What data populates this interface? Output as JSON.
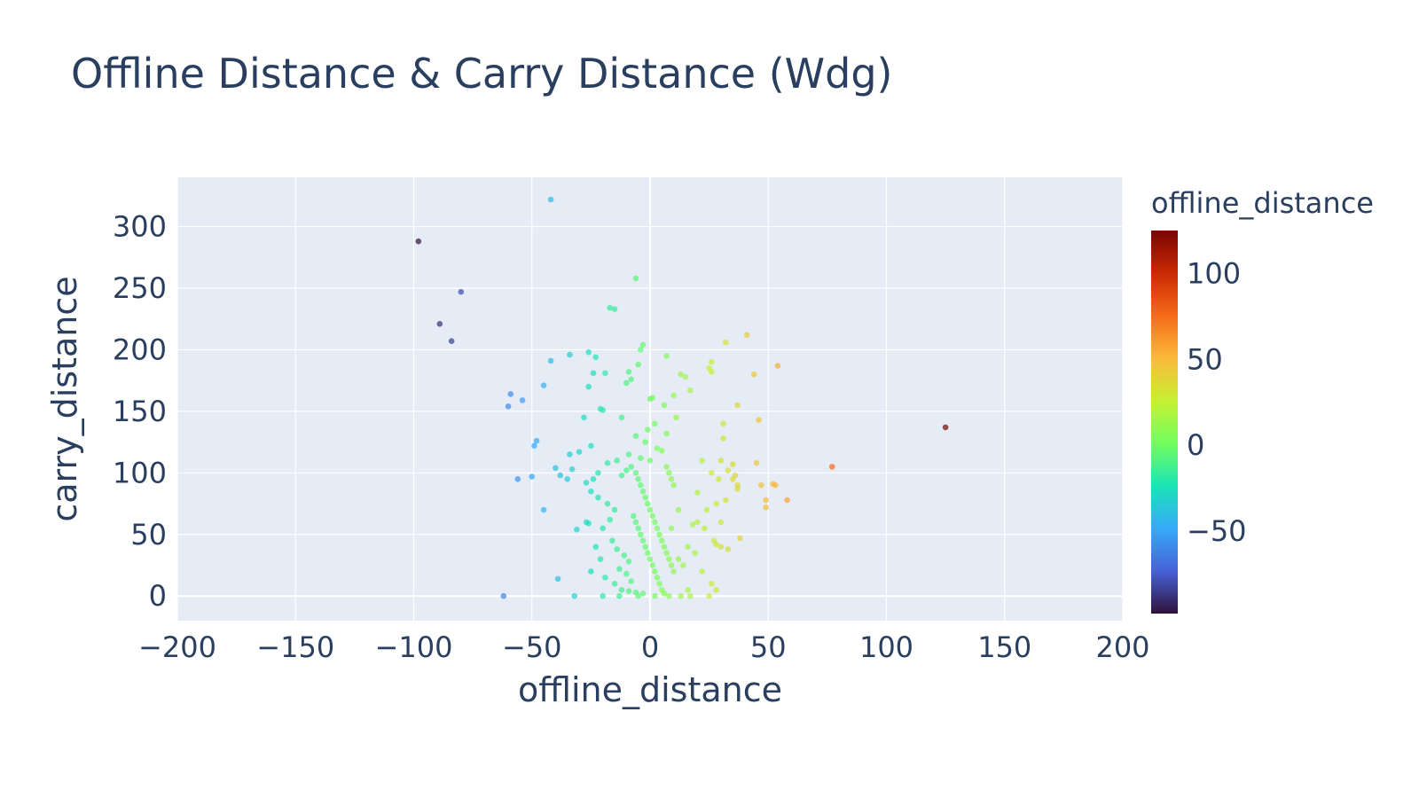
{
  "chart_data": {
    "type": "scatter",
    "title": "Offline Distance & Carry Distance (Wdg)",
    "xlabel": "offline_distance",
    "ylabel": "carry_distance",
    "xlim": [
      -200,
      200
    ],
    "ylim": [
      -20,
      340
    ],
    "xticks": [
      -200,
      -150,
      -100,
      -50,
      0,
      50,
      100,
      150,
      200
    ],
    "xtick_labels": [
      "−200",
      "−150",
      "−100",
      "−50",
      "0",
      "50",
      "100",
      "150",
      "200"
    ],
    "yticks": [
      0,
      50,
      100,
      150,
      200,
      250,
      300
    ],
    "ytick_labels": [
      "0",
      "50",
      "100",
      "150",
      "200",
      "250",
      "300"
    ],
    "grid": true,
    "colorbar": {
      "title": "offline_distance",
      "range": [
        -98,
        125
      ],
      "ticks": [
        -50,
        0,
        50,
        100
      ],
      "tick_labels": [
        "−50",
        "0",
        "50",
        "100"
      ],
      "colorscale": "turbo",
      "stops": [
        "#30123b",
        "#4662d7",
        "#36aaf9",
        "#1ae4b6",
        "#72fe5e",
        "#c8ef34",
        "#faba39",
        "#f66b19",
        "#ca2a04",
        "#7a0403"
      ]
    },
    "plot_bgcolor": "#e5ecf6",
    "points": [
      [
        -42,
        322
      ],
      [
        -98,
        288
      ],
      [
        -80,
        247
      ],
      [
        -89,
        221
      ],
      [
        -84,
        207
      ],
      [
        -6,
        258
      ],
      [
        -17,
        234
      ],
      [
        -15,
        233
      ],
      [
        -3,
        204
      ],
      [
        -4,
        200
      ],
      [
        -26,
        198
      ],
      [
        -34,
        196
      ],
      [
        -23,
        194
      ],
      [
        -42,
        191
      ],
      [
        -45,
        171
      ],
      [
        -24,
        181
      ],
      [
        -19,
        181
      ],
      [
        -9,
        182
      ],
      [
        -5,
        188
      ],
      [
        7,
        195
      ],
      [
        -26,
        170
      ],
      [
        -8,
        176
      ],
      [
        -10,
        173
      ],
      [
        -21,
        152
      ],
      [
        -20,
        151
      ],
      [
        -28,
        145
      ],
      [
        0,
        160
      ],
      [
        1,
        161
      ],
      [
        10,
        163
      ],
      [
        6,
        155
      ],
      [
        15,
        178
      ],
      [
        17,
        167
      ],
      [
        13,
        180
      ],
      [
        11,
        145
      ],
      [
        -59,
        164
      ],
      [
        -60,
        154
      ],
      [
        -54,
        159
      ],
      [
        -48,
        126
      ],
      [
        -49,
        122
      ],
      [
        -56,
        95
      ],
      [
        -50,
        97
      ],
      [
        -45,
        70
      ],
      [
        -39,
        14
      ],
      [
        -62,
        0
      ],
      [
        -31,
        54
      ],
      [
        -27,
        60
      ],
      [
        -26,
        59
      ],
      [
        -33,
        103
      ],
      [
        -35,
        95
      ],
      [
        -38,
        98
      ],
      [
        -40,
        104
      ],
      [
        -34,
        115
      ],
      [
        -30,
        117
      ],
      [
        -25,
        122
      ],
      [
        -32,
        0
      ],
      [
        -20,
        0
      ],
      [
        -13,
        0
      ],
      [
        -5,
        0
      ],
      [
        2,
        0
      ],
      [
        8,
        0
      ],
      [
        13,
        0
      ],
      [
        17,
        0
      ],
      [
        25,
        0
      ],
      [
        26,
        190
      ],
      [
        26,
        182
      ],
      [
        25,
        185
      ],
      [
        41,
        212
      ],
      [
        32,
        206
      ],
      [
        44,
        180
      ],
      [
        54,
        187
      ],
      [
        37,
        155
      ],
      [
        31,
        140
      ],
      [
        46,
        143
      ],
      [
        35,
        107
      ],
      [
        33,
        102
      ],
      [
        36,
        98
      ],
      [
        35,
        95
      ],
      [
        37,
        90
      ],
      [
        37,
        87
      ],
      [
        30,
        110
      ],
      [
        29,
        95
      ],
      [
        26,
        100
      ],
      [
        31,
        128
      ],
      [
        45,
        108
      ],
      [
        47,
        90
      ],
      [
        49,
        78
      ],
      [
        49,
        72
      ],
      [
        52,
        91
      ],
      [
        53,
        90
      ],
      [
        58,
        78
      ],
      [
        77,
        105
      ],
      [
        125,
        137
      ],
      [
        20,
        84
      ],
      [
        22,
        110
      ],
      [
        24,
        70
      ],
      [
        28,
        75
      ],
      [
        30,
        60
      ],
      [
        32,
        78
      ],
      [
        23,
        55
      ],
      [
        27,
        45
      ],
      [
        30,
        40
      ],
      [
        28,
        42
      ],
      [
        33,
        38
      ],
      [
        38,
        47
      ],
      [
        20,
        60
      ],
      [
        18,
        58
      ],
      [
        16,
        40
      ],
      [
        19,
        35
      ],
      [
        22,
        20
      ],
      [
        26,
        10
      ],
      [
        28,
        5
      ],
      [
        16,
        5
      ],
      [
        12,
        30
      ],
      [
        14,
        25
      ],
      [
        9,
        55
      ],
      [
        12,
        70
      ],
      [
        -12,
        145
      ],
      [
        -6,
        130
      ],
      [
        -2,
        125
      ],
      [
        -9,
        115
      ],
      [
        -14,
        110
      ],
      [
        -18,
        108
      ],
      [
        -22,
        100
      ],
      [
        -24,
        95
      ],
      [
        -27,
        92
      ],
      [
        -25,
        85
      ],
      [
        -22,
        80
      ],
      [
        -18,
        75
      ],
      [
        -15,
        70
      ],
      [
        -17,
        62
      ],
      [
        -20,
        55
      ],
      [
        -23,
        40
      ],
      [
        -21,
        30
      ],
      [
        -25,
        20
      ],
      [
        -19,
        15
      ],
      [
        -15,
        10
      ],
      [
        -12,
        5
      ],
      [
        -16,
        45
      ],
      [
        -14,
        38
      ],
      [
        -11,
        33
      ],
      [
        -9,
        28
      ],
      [
        -13,
        22
      ],
      [
        -10,
        18
      ],
      [
        -8,
        12
      ],
      [
        -6,
        100
      ],
      [
        -5,
        95
      ],
      [
        -4,
        90
      ],
      [
        -3,
        85
      ],
      [
        -2,
        80
      ],
      [
        -1,
        75
      ],
      [
        0,
        70
      ],
      [
        1,
        65
      ],
      [
        2,
        60
      ],
      [
        3,
        55
      ],
      [
        4,
        50
      ],
      [
        5,
        45
      ],
      [
        6,
        40
      ],
      [
        7,
        35
      ],
      [
        8,
        30
      ],
      [
        9,
        25
      ],
      [
        10,
        20
      ],
      [
        -7,
        65
      ],
      [
        -6,
        60
      ],
      [
        -5,
        55
      ],
      [
        -4,
        50
      ],
      [
        -3,
        45
      ],
      [
        -2,
        40
      ],
      [
        -1,
        35
      ],
      [
        0,
        30
      ],
      [
        1,
        25
      ],
      [
        2,
        20
      ],
      [
        3,
        15
      ],
      [
        4,
        10
      ],
      [
        5,
        5
      ],
      [
        6,
        2
      ],
      [
        -3,
        2
      ],
      [
        -6,
        3
      ],
      [
        -9,
        4
      ],
      [
        7,
        105
      ],
      [
        8,
        100
      ],
      [
        9,
        95
      ],
      [
        10,
        90
      ],
      [
        -8,
        105
      ],
      [
        -10,
        102
      ],
      [
        -12,
        98
      ],
      [
        0,
        110
      ],
      [
        3,
        120
      ],
      [
        5,
        118
      ],
      [
        -1,
        135
      ],
      [
        2,
        140
      ],
      [
        7,
        132
      ],
      [
        -4,
        112
      ]
    ]
  }
}
